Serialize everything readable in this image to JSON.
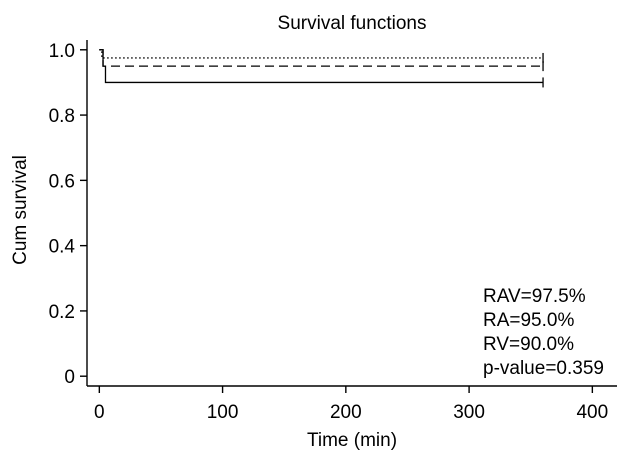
{
  "chart_data": {
    "type": "line",
    "title": "Survival functions",
    "xlabel": "Time (min)",
    "ylabel": "Cum survival",
    "xlim": [
      -10,
      420
    ],
    "ylim": [
      -0.03,
      1.03
    ],
    "xticks": [
      0,
      100,
      200,
      300,
      400
    ],
    "xtick_labels": [
      "0",
      "100",
      "200",
      "300",
      "400"
    ],
    "yticks": [
      0,
      0.2,
      0.4,
      0.6,
      0.8,
      1.0
    ],
    "ytick_labels": [
      "0",
      "0.2",
      "0.4",
      "0.6",
      "0.8",
      "1.0"
    ],
    "grid": false,
    "series": [
      {
        "name": "RAV",
        "linestyle": "dotted",
        "x": [
          0,
          2,
          360
        ],
        "y": [
          1.0,
          0.975,
          0.975
        ],
        "censored_at": [
          [
            360,
            0.975
          ]
        ]
      },
      {
        "name": "RA",
        "linestyle": "dashed",
        "x": [
          0,
          3,
          360
        ],
        "y": [
          1.0,
          0.95,
          0.95
        ],
        "censored_at": [
          [
            360,
            0.95
          ]
        ]
      },
      {
        "name": "RV",
        "linestyle": "solid",
        "x": [
          0,
          3,
          5,
          360
        ],
        "y": [
          1.0,
          0.95,
          0.9,
          0.9
        ],
        "censored_at": [
          [
            360,
            0.9
          ]
        ]
      }
    ],
    "annotations": [
      "RAV=97.5%",
      "RA=95.0%",
      "RV=90.0%",
      "p-value=0.359"
    ]
  }
}
